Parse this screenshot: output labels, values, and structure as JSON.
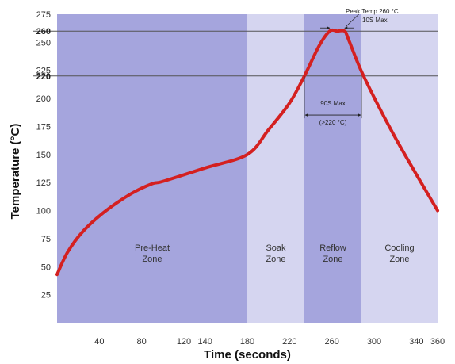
{
  "chart_data": {
    "type": "line",
    "xlabel": "Time (seconds)",
    "ylabel": "Temperature (°C)",
    "xlim": [
      0,
      360
    ],
    "ylim": [
      0,
      275
    ],
    "x_ticks": [
      40,
      80,
      120,
      140,
      180,
      220,
      260,
      300,
      340,
      360
    ],
    "y_ticks": [
      25,
      50,
      75,
      100,
      125,
      150,
      175,
      200,
      225,
      250,
      275
    ],
    "y_ticks_emphasized": [
      220,
      260
    ],
    "x_tick_labels": [
      "40",
      "80",
      "120",
      "140",
      "180",
      "220",
      "260",
      "300",
      "340",
      "360"
    ],
    "y_tick_labels": [
      "25",
      "50",
      "75",
      "100",
      "125",
      "150",
      "175",
      "200",
      "225",
      "250",
      "275"
    ],
    "y_emph_labels": [
      "220",
      "260"
    ],
    "reference_lines": [
      220,
      260
    ],
    "zones": [
      {
        "name": "Pre-Heat\nZone",
        "lines": [
          "Pre-Heat",
          "Zone"
        ],
        "x_start": 0,
        "x_end": 180,
        "color": "#a5a5dd"
      },
      {
        "name": "Soak\nZone",
        "lines": [
          "Soak",
          "Zone"
        ],
        "x_start": 180,
        "x_end": 234,
        "color": "#d5d5f0"
      },
      {
        "name": "Reflow\nZone",
        "lines": [
          "Reflow",
          "Zone"
        ],
        "x_start": 234,
        "x_end": 288,
        "color": "#a5a5dd"
      },
      {
        "name": "Cooling\nZone",
        "lines": [
          "Cooling",
          "Zone"
        ],
        "x_start": 288,
        "x_end": 360,
        "color": "#d5d5f0"
      }
    ],
    "series": [
      {
        "color": "#d42020",
        "x": [
          0,
          10,
          25,
          45,
          70,
          90,
          100,
          140,
          180,
          200,
          220,
          234,
          248,
          258,
          265,
          272,
          276,
          290,
          320,
          360
        ],
        "y": [
          43,
          63,
          82,
          99,
          115,
          124,
          126,
          138,
          150,
          172,
          196,
          220,
          247,
          260,
          260,
          260,
          252,
          220,
          165,
          100
        ]
      }
    ],
    "annotations": {
      "peak_title": "Peak Temp 260 °C",
      "peak_sub": "10S Max",
      "reflow_title": "90S Max",
      "reflow_sub": "(>220 °C)"
    },
    "peak_span": [
      258,
      272
    ],
    "reflow_span": [
      234,
      288
    ],
    "reflow_annotation_y": 188,
    "grid": false,
    "legend": "none"
  }
}
